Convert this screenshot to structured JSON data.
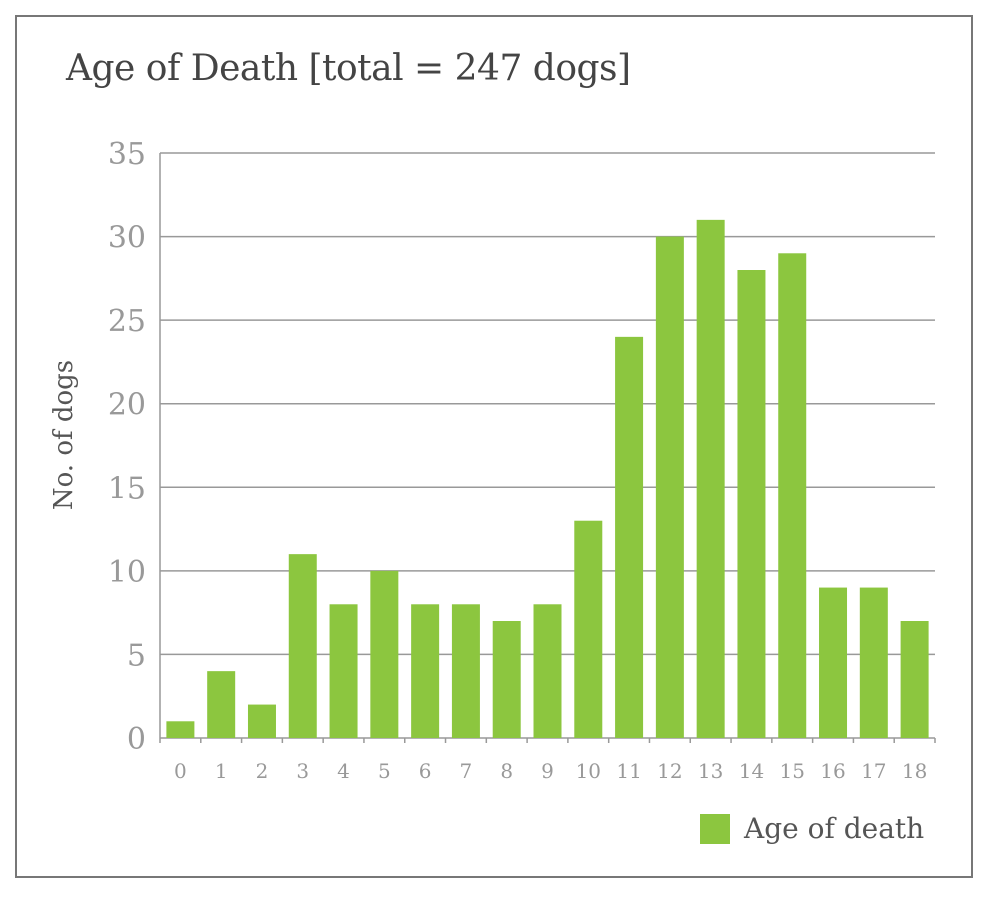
{
  "chart_data": {
    "type": "bar",
    "title": "Age of Death [total = 247 dogs]",
    "xlabel": "",
    "ylabel": "No. of dogs",
    "categories": [
      "0",
      "1",
      "2",
      "3",
      "4",
      "5",
      "6",
      "7",
      "8",
      "9",
      "10",
      "11",
      "12",
      "13",
      "14",
      "15",
      "16",
      "17",
      "18"
    ],
    "series": [
      {
        "name": "Age of death",
        "values": [
          1,
          4,
          2,
          11,
          8,
          10,
          8,
          8,
          7,
          8,
          13,
          24,
          30,
          31,
          28,
          29,
          9,
          9,
          7
        ]
      }
    ],
    "ylim": [
      0,
      35
    ],
    "yticks": [
      0,
      5,
      10,
      15,
      20,
      25,
      30,
      35
    ],
    "grid": true,
    "legend": "bottom-right",
    "colors": {
      "bar": "#8cc63f",
      "grid": "#999999"
    }
  }
}
